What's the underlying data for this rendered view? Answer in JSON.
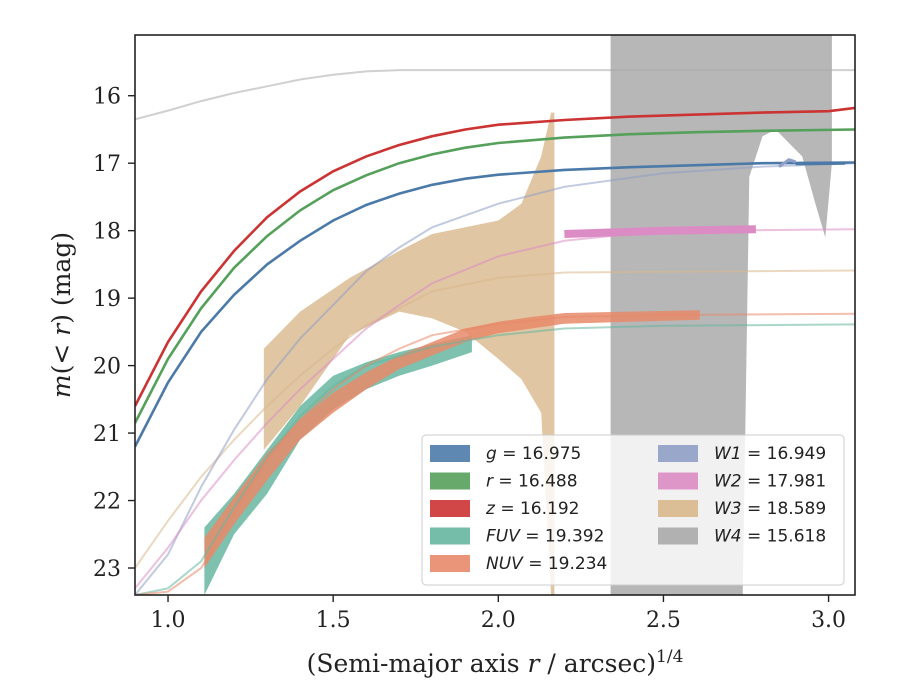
{
  "chart_data": {
    "type": "line",
    "title": "",
    "xlabel": "(Semi-major axis r / arcsec)",
    "xlabel_italic_var": "r",
    "xlabel_exponent": "1/4",
    "ylabel": "m(< r) (mag)",
    "xlim": [
      0.9,
      3.08
    ],
    "ylim": [
      23.4,
      15.1
    ],
    "y_inverted": true,
    "grid": false,
    "legend_placement": "lower-right",
    "legend_columns": 2,
    "xticks": [
      1.0,
      1.5,
      2.0,
      2.5,
      3.0
    ],
    "xtick_labels": [
      "1.0",
      "1.5",
      "2.0",
      "2.5",
      "3.0"
    ],
    "yticks": [
      16,
      17,
      18,
      19,
      20,
      21,
      22,
      23
    ],
    "ytick_labels": [
      "16",
      "17",
      "18",
      "19",
      "20",
      "21",
      "22",
      "23"
    ],
    "legend": [
      {
        "band": "g",
        "value": "16.975",
        "color": "#4c7aa8"
      },
      {
        "band": "r",
        "value": "16.488",
        "color": "#55a05a"
      },
      {
        "band": "z",
        "value": "16.192",
        "color": "#cc3333"
      },
      {
        "band": "FUV",
        "value": "19.392",
        "color": "#66b6a0"
      },
      {
        "band": "NUV",
        "value": "19.234",
        "color": "#e8896a"
      },
      {
        "band": "W1",
        "value": "16.949",
        "color": "#8f9fc6"
      },
      {
        "band": "W2",
        "value": "17.981",
        "color": "#dc8cc4"
      },
      {
        "band": "W3",
        "value": "18.589",
        "color": "#d8b88c"
      },
      {
        "band": "W4",
        "value": "15.618",
        "color": "#aaaaaa"
      }
    ],
    "series": [
      {
        "band": "W4",
        "color": "#aaaaaa",
        "model_asymptote": 15.618,
        "model": [
          [
            0.9,
            16.35
          ],
          [
            1.0,
            16.22
          ],
          [
            1.1,
            16.08
          ],
          [
            1.2,
            15.96
          ],
          [
            1.3,
            15.86
          ],
          [
            1.4,
            15.76
          ],
          [
            1.5,
            15.69
          ],
          [
            1.6,
            15.64
          ],
          [
            1.7,
            15.62
          ],
          [
            2.0,
            15.62
          ],
          [
            3.08,
            15.62
          ]
        ],
        "band_x": [
          2.34,
          2.4,
          2.5,
          2.6,
          2.65,
          2.7,
          2.74,
          2.76,
          2.8,
          2.84,
          2.88,
          2.92,
          2.96,
          2.99,
          3.01
        ],
        "band_upper": [
          15.1,
          15.1,
          15.1,
          15.1,
          15.1,
          15.1,
          15.1,
          15.1,
          15.1,
          15.1,
          15.1,
          15.1,
          15.1,
          15.1,
          15.1
        ],
        "band_lower": [
          23.4,
          23.4,
          23.4,
          23.4,
          23.4,
          23.4,
          23.4,
          17.2,
          16.6,
          16.5,
          16.7,
          16.9,
          17.6,
          18.1,
          17.0
        ]
      },
      {
        "band": "W3",
        "color": "#d8b88c",
        "model_asymptote": 18.589,
        "model": [
          [
            0.9,
            23.0
          ],
          [
            1.0,
            22.3
          ],
          [
            1.1,
            21.65
          ],
          [
            1.2,
            21.1
          ],
          [
            1.3,
            20.6
          ],
          [
            1.4,
            20.15
          ],
          [
            1.5,
            19.75
          ],
          [
            1.6,
            19.4
          ],
          [
            1.8,
            18.9
          ],
          [
            2.0,
            18.7
          ],
          [
            2.2,
            18.62
          ],
          [
            3.08,
            18.59
          ]
        ],
        "band_x": [
          1.29,
          1.4,
          1.55,
          1.7,
          1.8,
          1.9,
          2.0,
          2.07,
          2.13,
          2.16,
          2.17
        ],
        "band_upper": [
          19.75,
          19.2,
          18.7,
          18.3,
          18.05,
          17.95,
          17.85,
          17.6,
          16.9,
          16.25,
          16.25
        ],
        "band_lower": [
          21.25,
          20.6,
          19.55,
          19.2,
          19.3,
          19.5,
          19.9,
          20.2,
          20.7,
          23.4,
          23.4
        ]
      },
      {
        "band": "W1",
        "color": "#8f9fc6",
        "model_asymptote": 16.949,
        "model": [
          [
            0.9,
            23.4
          ],
          [
            1.0,
            22.8
          ],
          [
            1.1,
            21.8
          ],
          [
            1.2,
            20.95
          ],
          [
            1.3,
            20.2
          ],
          [
            1.4,
            19.6
          ],
          [
            1.5,
            19.1
          ],
          [
            1.6,
            18.6
          ],
          [
            1.7,
            18.25
          ],
          [
            1.8,
            17.95
          ],
          [
            2.0,
            17.6
          ],
          [
            2.2,
            17.35
          ],
          [
            2.5,
            17.15
          ],
          [
            2.8,
            17.05
          ],
          [
            3.08,
            17.0
          ]
        ],
        "meas": [
          [
            2.85,
            17.05
          ],
          [
            2.88,
            16.95
          ],
          [
            2.9,
            16.98
          ]
        ],
        "meas_width": 3
      },
      {
        "band": "W2",
        "color": "#dc8cc4",
        "model_asymptote": 17.981,
        "model": [
          [
            0.9,
            23.3
          ],
          [
            1.0,
            22.7
          ],
          [
            1.1,
            22.0
          ],
          [
            1.2,
            21.4
          ],
          [
            1.3,
            20.85
          ],
          [
            1.4,
            20.35
          ],
          [
            1.5,
            19.9
          ],
          [
            1.6,
            19.45
          ],
          [
            1.7,
            19.1
          ],
          [
            1.8,
            18.78
          ],
          [
            2.0,
            18.38
          ],
          [
            2.2,
            18.15
          ],
          [
            2.4,
            18.05
          ],
          [
            2.6,
            18.0
          ],
          [
            3.08,
            17.98
          ]
        ],
        "meas": [
          [
            2.2,
            18.05
          ],
          [
            2.5,
            18.0
          ],
          [
            2.78,
            17.98
          ]
        ],
        "meas_width": 8
      },
      {
        "band": "FUV",
        "color": "#66b6a0",
        "model_asymptote": 19.392,
        "model": [
          [
            0.9,
            23.4
          ],
          [
            1.0,
            23.3
          ],
          [
            1.1,
            22.9
          ],
          [
            1.2,
            22.1
          ],
          [
            1.3,
            21.35
          ],
          [
            1.4,
            20.75
          ],
          [
            1.5,
            20.3
          ],
          [
            1.6,
            20.0
          ],
          [
            1.8,
            19.72
          ],
          [
            2.0,
            19.55
          ],
          [
            2.2,
            19.45
          ],
          [
            2.5,
            19.41
          ],
          [
            3.08,
            19.39
          ]
        ],
        "band_x": [
          1.11,
          1.2,
          1.3,
          1.4,
          1.5,
          1.6,
          1.7,
          1.8,
          1.92
        ],
        "band_upper": [
          22.4,
          21.9,
          21.25,
          20.6,
          20.15,
          19.95,
          19.8,
          19.68,
          19.55
        ],
        "band_lower": [
          23.4,
          22.5,
          21.9,
          21.1,
          20.65,
          20.35,
          20.15,
          20.0,
          19.8
        ]
      },
      {
        "band": "NUV",
        "color": "#e8896a",
        "model_asymptote": 19.234,
        "model": [
          [
            0.9,
            23.4
          ],
          [
            1.0,
            23.35
          ],
          [
            1.1,
            23.0
          ],
          [
            1.2,
            22.2
          ],
          [
            1.3,
            21.4
          ],
          [
            1.4,
            20.8
          ],
          [
            1.5,
            20.35
          ],
          [
            1.6,
            20.0
          ],
          [
            1.7,
            19.75
          ],
          [
            1.8,
            19.55
          ],
          [
            2.0,
            19.38
          ],
          [
            2.2,
            19.28
          ],
          [
            2.5,
            19.25
          ],
          [
            3.08,
            19.23
          ]
        ],
        "band_x": [
          1.11,
          1.2,
          1.3,
          1.4,
          1.5,
          1.6,
          1.7,
          1.8,
          1.9,
          2.0,
          2.1,
          2.2,
          2.4,
          2.61
        ],
        "band_upper": [
          22.55,
          21.95,
          21.3,
          20.8,
          20.4,
          20.1,
          19.85,
          19.65,
          19.45,
          19.35,
          19.28,
          19.22,
          19.2,
          19.18
        ],
        "band_lower": [
          23.0,
          22.35,
          21.7,
          21.1,
          20.7,
          20.35,
          20.05,
          19.85,
          19.65,
          19.52,
          19.45,
          19.38,
          19.35,
          19.32
        ]
      },
      {
        "band": "g",
        "color": "#4c7aa8",
        "model_asymptote": 16.975,
        "model": [
          [
            0.9,
            21.2
          ],
          [
            1.0,
            20.25
          ],
          [
            1.1,
            19.5
          ],
          [
            1.2,
            18.95
          ],
          [
            1.3,
            18.5
          ],
          [
            1.4,
            18.15
          ],
          [
            1.5,
            17.85
          ],
          [
            1.6,
            17.62
          ],
          [
            1.7,
            17.45
          ],
          [
            1.8,
            17.32
          ],
          [
            1.9,
            17.23
          ],
          [
            2.0,
            17.17
          ],
          [
            2.2,
            17.1
          ],
          [
            2.4,
            17.06
          ],
          [
            2.6,
            17.03
          ],
          [
            2.8,
            17.0
          ],
          [
            3.08,
            16.99
          ]
        ],
        "meas": [
          [
            2.9,
            17.01
          ],
          [
            3.05,
            17.0
          ]
        ],
        "meas_width": 3
      },
      {
        "band": "r",
        "color": "#55a05a",
        "model_asymptote": 16.488,
        "model": [
          [
            0.9,
            20.85
          ],
          [
            1.0,
            19.9
          ],
          [
            1.1,
            19.15
          ],
          [
            1.2,
            18.55
          ],
          [
            1.3,
            18.08
          ],
          [
            1.4,
            17.7
          ],
          [
            1.5,
            17.4
          ],
          [
            1.6,
            17.18
          ],
          [
            1.7,
            17.0
          ],
          [
            1.8,
            16.87
          ],
          [
            1.9,
            16.77
          ],
          [
            2.0,
            16.7
          ],
          [
            2.2,
            16.62
          ],
          [
            2.4,
            16.57
          ],
          [
            2.6,
            16.54
          ],
          [
            2.8,
            16.52
          ],
          [
            3.08,
            16.5
          ]
        ],
        "meas": [],
        "meas_width": 3
      },
      {
        "band": "z",
        "color": "#cc3333",
        "model_asymptote": 16.192,
        "model": [
          [
            0.9,
            20.6
          ],
          [
            1.0,
            19.65
          ],
          [
            1.1,
            18.9
          ],
          [
            1.2,
            18.3
          ],
          [
            1.3,
            17.8
          ],
          [
            1.4,
            17.42
          ],
          [
            1.5,
            17.12
          ],
          [
            1.6,
            16.9
          ],
          [
            1.7,
            16.73
          ],
          [
            1.8,
            16.6
          ],
          [
            1.9,
            16.5
          ],
          [
            2.0,
            16.43
          ],
          [
            2.2,
            16.36
          ],
          [
            2.4,
            16.31
          ],
          [
            2.6,
            16.28
          ],
          [
            2.8,
            16.25
          ],
          [
            3.0,
            16.23
          ],
          [
            3.08,
            16.18
          ]
        ],
        "meas": [],
        "meas_width": 3
      }
    ]
  }
}
